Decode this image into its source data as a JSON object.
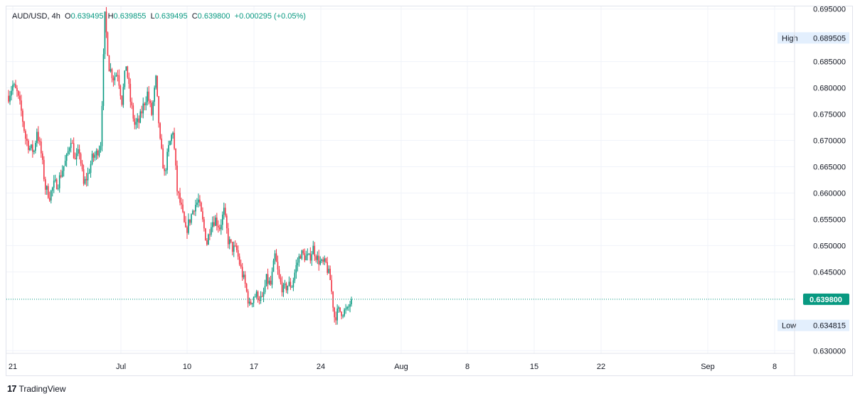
{
  "legend": {
    "symbol": "AUD/USD",
    "interval": "4h",
    "open_label": "O",
    "open": "0.639495",
    "high_label": "H",
    "high": "0.639855",
    "low_label": "L",
    "low": "0.639495",
    "close_label": "C",
    "close": "0.639800",
    "change": "+0.000295 (+0.05%)"
  },
  "branding": {
    "name": "TradingView",
    "mark": "17"
  },
  "colors": {
    "up": "#089981",
    "down": "#f23645",
    "grid": "#f0f3fa",
    "text": "#131722",
    "label_bg": "#e3effd"
  },
  "chart_data": {
    "type": "candlestick",
    "symbol": "AUD/USD",
    "interval": "4h",
    "ylim": [
      0.6295,
      0.6955
    ],
    "y_ticks": [
      "0.695000",
      "0.685000",
      "0.680000",
      "0.675000",
      "0.670000",
      "0.665000",
      "0.660000",
      "0.655000",
      "0.650000",
      "0.645000",
      "0.630000"
    ],
    "x_ticks": [
      "21",
      "Jul",
      "10",
      "17",
      "24",
      "Aug",
      "8",
      "15",
      "22",
      "Sep",
      "8"
    ],
    "last_price": {
      "value": 0.6398,
      "label": "0.639800"
    },
    "high_marker": {
      "tag": "High",
      "value": 0.689505,
      "label": "0.689505"
    },
    "low_marker": {
      "tag": "Low",
      "value": 0.634815,
      "label": "0.634815"
    },
    "anchors": [
      [
        0,
        0.6785
      ],
      [
        3,
        0.6805
      ],
      [
        6,
        0.679
      ],
      [
        9,
        0.6755
      ],
      [
        12,
        0.6705
      ],
      [
        15,
        0.6685
      ],
      [
        18,
        0.668
      ],
      [
        20,
        0.672
      ],
      [
        23,
        0.6675
      ],
      [
        26,
        0.661
      ],
      [
        29,
        0.6595
      ],
      [
        32,
        0.6615
      ],
      [
        35,
        0.662
      ],
      [
        38,
        0.6645
      ],
      [
        41,
        0.6665
      ],
      [
        44,
        0.6705
      ],
      [
        47,
        0.666
      ],
      [
        50,
        0.668
      ],
      [
        53,
        0.6615
      ],
      [
        56,
        0.6635
      ],
      [
        59,
        0.6665
      ],
      [
        62,
        0.6675
      ],
      [
        65,
        0.6695
      ],
      [
        68,
        0.6935
      ],
      [
        71,
        0.684
      ],
      [
        74,
        0.682
      ],
      [
        77,
        0.683
      ],
      [
        80,
        0.6775
      ],
      [
        83,
        0.6845
      ],
      [
        86,
        0.6775
      ],
      [
        89,
        0.673
      ],
      [
        92,
        0.6735
      ],
      [
        95,
        0.6765
      ],
      [
        98,
        0.679
      ],
      [
        101,
        0.675
      ],
      [
        104,
        0.6815
      ],
      [
        107,
        0.6695
      ],
      [
        110,
        0.6635
      ],
      [
        113,
        0.6685
      ],
      [
        116,
        0.672
      ],
      [
        119,
        0.6605
      ],
      [
        122,
        0.657
      ],
      [
        125,
        0.6525
      ],
      [
        128,
        0.655
      ],
      [
        131,
        0.6575
      ],
      [
        134,
        0.6585
      ],
      [
        137,
        0.6545
      ],
      [
        140,
        0.6505
      ],
      [
        143,
        0.6545
      ],
      [
        146,
        0.655
      ],
      [
        149,
        0.6535
      ],
      [
        152,
        0.6565
      ],
      [
        155,
        0.651
      ],
      [
        158,
        0.6495
      ],
      [
        161,
        0.649
      ],
      [
        164,
        0.6455
      ],
      [
        167,
        0.6425
      ],
      [
        170,
        0.6385
      ],
      [
        173,
        0.6405
      ],
      [
        176,
        0.6405
      ],
      [
        179,
        0.6395
      ],
      [
        182,
        0.6435
      ],
      [
        185,
        0.6425
      ],
      [
        188,
        0.648
      ],
      [
        191,
        0.6435
      ],
      [
        194,
        0.6415
      ],
      [
        197,
        0.6425
      ],
      [
        200,
        0.6425
      ],
      [
        203,
        0.646
      ],
      [
        206,
        0.6485
      ],
      [
        209,
        0.648
      ],
      [
        212,
        0.6475
      ],
      [
        215,
        0.6495
      ],
      [
        218,
        0.6475
      ],
      [
        221,
        0.6465
      ],
      [
        224,
        0.6465
      ],
      [
        227,
        0.6435
      ],
      [
        230,
        0.6365
      ],
      [
        233,
        0.6375
      ],
      [
        236,
        0.6375
      ],
      [
        239,
        0.6375
      ],
      [
        242,
        0.6398
      ]
    ]
  }
}
